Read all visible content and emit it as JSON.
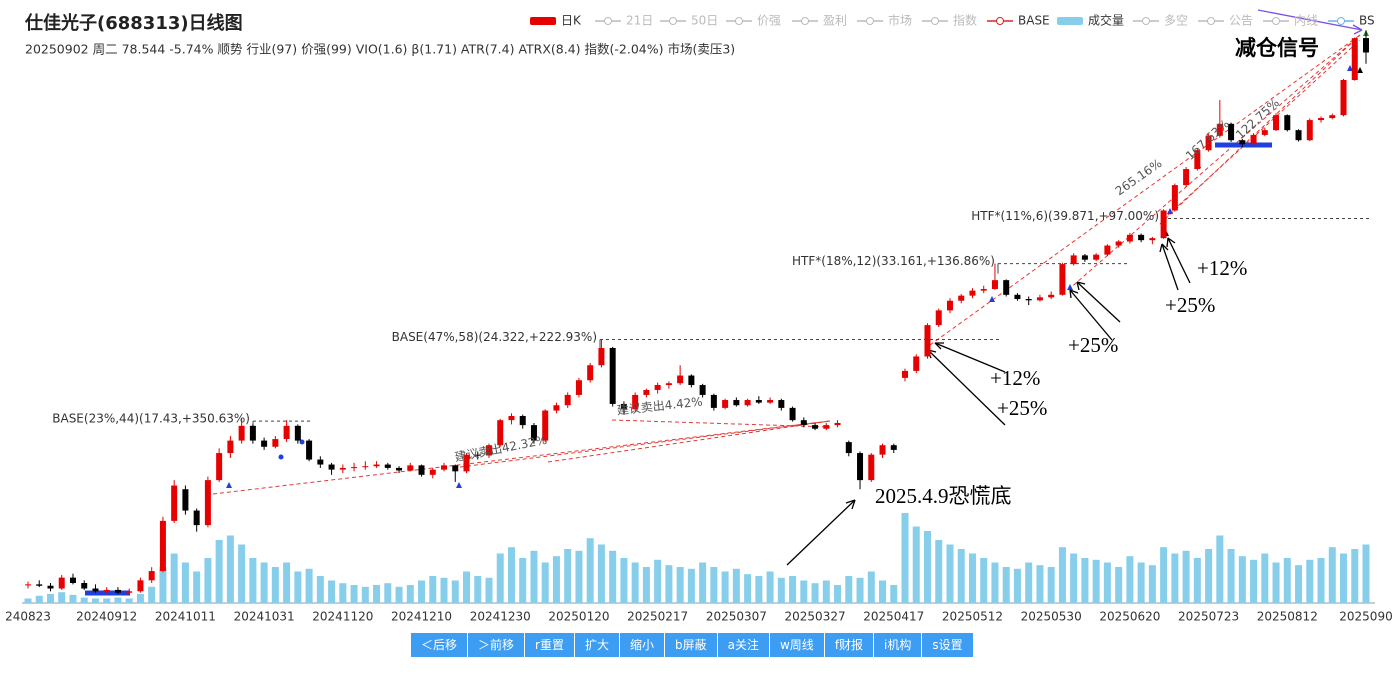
{
  "chart_data": {
    "type": "candlestick",
    "title": "仕佳光子(688313)日线图",
    "subtitle": "20250902 周二 78.544 -5.74% 顺势 行业(97) 价强(99) VIO(1.6) β(1.71) ATR(7.4) ATRX(8.4) 指数(-2.04%) 市场(卖压3)",
    "log_scale": true,
    "ylim": [
      8.57,
      86.1
    ],
    "up_color": "#e60000",
    "down_color": "#000000",
    "categories": [
      "240823",
      null,
      null,
      null,
      null,
      null,
      null,
      "20240912",
      null,
      null,
      null,
      null,
      null,
      null,
      "20241011",
      null,
      null,
      null,
      null,
      null,
      null,
      "20241031",
      null,
      null,
      null,
      null,
      null,
      null,
      "20241120",
      null,
      null,
      null,
      null,
      null,
      null,
      "20241210",
      null,
      null,
      null,
      null,
      null,
      null,
      "20241230",
      null,
      null,
      null,
      null,
      null,
      null,
      "20250120",
      null,
      null,
      null,
      null,
      null,
      null,
      "20250217",
      null,
      null,
      null,
      null,
      null,
      null,
      "20250307",
      null,
      null,
      null,
      null,
      null,
      null,
      "20250327",
      null,
      null,
      null,
      null,
      null,
      null,
      "20250417",
      null,
      null,
      null,
      null,
      null,
      null,
      "20250512",
      null,
      null,
      null,
      null,
      null,
      null,
      "20250530",
      null,
      null,
      null,
      null,
      null,
      null,
      "20250620",
      null,
      null,
      null,
      null,
      null,
      null,
      "20250723",
      null,
      null,
      null,
      null,
      null,
      null,
      "20250812",
      null,
      null,
      null,
      null,
      null,
      null,
      "2025090"
    ],
    "ohlc": [
      [
        8.92,
        9.05,
        8.8,
        8.95
      ],
      [
        8.95,
        9.1,
        8.85,
        8.9
      ],
      [
        8.9,
        9.0,
        8.7,
        8.8
      ],
      [
        8.8,
        9.3,
        8.75,
        9.2
      ],
      [
        9.2,
        9.35,
        8.95,
        9.0
      ],
      [
        9.0,
        9.1,
        8.75,
        8.8
      ],
      [
        8.8,
        8.95,
        8.65,
        8.7
      ],
      [
        8.7,
        8.85,
        8.6,
        8.75
      ],
      [
        8.75,
        8.85,
        8.6,
        8.65
      ],
      [
        8.65,
        8.8,
        8.55,
        8.7
      ],
      [
        8.7,
        9.2,
        8.65,
        9.1
      ],
      [
        9.1,
        9.6,
        9.0,
        9.45
      ],
      [
        9.45,
        11.8,
        9.4,
        11.6
      ],
      [
        11.6,
        13.7,
        11.5,
        13.4
      ],
      [
        13.2,
        13.4,
        11.9,
        12.1
      ],
      [
        12.1,
        12.2,
        11.1,
        11.4
      ],
      [
        11.4,
        13.9,
        11.3,
        13.7
      ],
      [
        13.7,
        15.6,
        13.6,
        15.3
      ],
      [
        15.3,
        16.4,
        15.0,
        16.1
      ],
      [
        16.1,
        17.6,
        15.9,
        17.1
      ],
      [
        17.1,
        17.2,
        15.9,
        16.1
      ],
      [
        16.1,
        16.3,
        15.5,
        15.7
      ],
      [
        15.7,
        16.4,
        15.6,
        16.2
      ],
      [
        16.2,
        17.5,
        16.0,
        17.1
      ],
      [
        17.1,
        17.2,
        15.9,
        16.1
      ],
      [
        16.1,
        16.2,
        14.8,
        14.9
      ],
      [
        14.9,
        15.1,
        14.4,
        14.6
      ],
      [
        14.6,
        14.7,
        14.0,
        14.3
      ],
      [
        14.3,
        14.6,
        14.1,
        14.4
      ],
      [
        14.4,
        14.7,
        14.2,
        14.45
      ],
      [
        14.45,
        14.8,
        14.3,
        14.5
      ],
      [
        14.5,
        14.8,
        14.4,
        14.6
      ],
      [
        14.6,
        14.7,
        14.3,
        14.4
      ],
      [
        14.4,
        14.5,
        14.1,
        14.25
      ],
      [
        14.25,
        14.7,
        14.2,
        14.55
      ],
      [
        14.55,
        14.6,
        13.9,
        14.0
      ],
      [
        14.0,
        14.4,
        13.8,
        14.3
      ],
      [
        14.3,
        14.7,
        14.2,
        14.55
      ],
      [
        14.55,
        14.6,
        13.6,
        14.2
      ],
      [
        14.2,
        15.3,
        14.1,
        15.2
      ],
      [
        15.2,
        15.4,
        14.9,
        15.15
      ],
      [
        15.15,
        15.9,
        15.0,
        15.8
      ],
      [
        15.8,
        17.6,
        15.7,
        17.5
      ],
      [
        17.5,
        18.0,
        17.2,
        17.8
      ],
      [
        17.8,
        17.9,
        16.9,
        17.15
      ],
      [
        17.15,
        17.3,
        15.9,
        16.1
      ],
      [
        16.1,
        18.3,
        16.0,
        18.2
      ],
      [
        18.2,
        18.8,
        18.0,
        18.6
      ],
      [
        18.6,
        19.6,
        18.4,
        19.4
      ],
      [
        19.4,
        20.8,
        19.2,
        20.6
      ],
      [
        20.6,
        22.1,
        20.4,
        21.9
      ],
      [
        21.9,
        24.32,
        21.7,
        23.5
      ],
      [
        23.5,
        23.6,
        18.5,
        18.7
      ],
      [
        18.7,
        18.9,
        17.9,
        18.3
      ],
      [
        18.3,
        19.6,
        18.1,
        19.4
      ],
      [
        19.4,
        19.9,
        19.2,
        19.8
      ],
      [
        19.8,
        20.4,
        19.5,
        20.2
      ],
      [
        20.2,
        20.5,
        19.9,
        20.35
      ],
      [
        20.35,
        21.9,
        20.2,
        21.0
      ],
      [
        21.0,
        21.1,
        20.0,
        20.2
      ],
      [
        20.2,
        20.3,
        19.2,
        19.4
      ],
      [
        19.4,
        19.5,
        18.2,
        18.4
      ],
      [
        18.4,
        19.1,
        18.3,
        19.0
      ],
      [
        19.0,
        19.2,
        18.5,
        18.6
      ],
      [
        18.6,
        19.1,
        18.5,
        19.0
      ],
      [
        19.0,
        19.3,
        18.7,
        18.8
      ],
      [
        18.8,
        19.2,
        18.7,
        19.0
      ],
      [
        19.0,
        19.1,
        18.2,
        18.4
      ],
      [
        18.4,
        18.5,
        17.4,
        17.5
      ],
      [
        17.5,
        17.7,
        17.0,
        17.15
      ],
      [
        17.15,
        17.3,
        16.8,
        16.9
      ],
      [
        16.9,
        17.3,
        16.8,
        17.15
      ],
      [
        17.15,
        17.5,
        17.0,
        17.3
      ],
      [
        16.0,
        16.1,
        15.1,
        15.3
      ],
      [
        15.3,
        15.4,
        13.2,
        13.7
      ],
      [
        13.7,
        15.3,
        13.6,
        15.2
      ],
      [
        15.2,
        15.9,
        15.0,
        15.8
      ],
      [
        15.8,
        15.9,
        15.3,
        15.5
      ],
      [
        20.8,
        21.6,
        20.5,
        21.4
      ],
      [
        21.4,
        22.9,
        21.2,
        22.7
      ],
      [
        22.7,
        26.0,
        22.5,
        25.8
      ],
      [
        25.8,
        27.6,
        25.6,
        27.4
      ],
      [
        27.4,
        28.8,
        27.1,
        28.5
      ],
      [
        28.5,
        29.3,
        28.2,
        29.1
      ],
      [
        29.1,
        30.0,
        28.8,
        29.7
      ],
      [
        29.7,
        30.3,
        29.4,
        29.9
      ],
      [
        29.9,
        33.16,
        29.8,
        31.0
      ],
      [
        31.0,
        31.1,
        29.0,
        29.2
      ],
      [
        29.2,
        29.4,
        28.5,
        28.7
      ],
      [
        28.7,
        29.0,
        28.0,
        28.55
      ],
      [
        28.55,
        29.2,
        28.4,
        28.9
      ],
      [
        28.9,
        29.6,
        28.7,
        29.2
      ],
      [
        29.2,
        33.3,
        29.1,
        33.1
      ],
      [
        33.1,
        34.6,
        32.9,
        34.3
      ],
      [
        34.3,
        34.5,
        33.4,
        33.7
      ],
      [
        33.7,
        34.6,
        33.5,
        34.4
      ],
      [
        34.4,
        35.9,
        34.2,
        35.7
      ],
      [
        35.7,
        36.5,
        35.4,
        36.3
      ],
      [
        36.3,
        37.6,
        36.0,
        37.3
      ],
      [
        37.3,
        37.5,
        36.2,
        36.5
      ],
      [
        36.5,
        37.0,
        35.9,
        36.8
      ],
      [
        36.8,
        41.4,
        36.7,
        41.2
      ],
      [
        41.2,
        46.0,
        41.0,
        45.7
      ],
      [
        45.7,
        49.2,
        45.4,
        48.8
      ],
      [
        48.8,
        53.0,
        48.5,
        52.7
      ],
      [
        52.7,
        56.3,
        52.4,
        55.9
      ],
      [
        55.9,
        64.7,
        55.5,
        58.7
      ],
      [
        58.7,
        59.0,
        54.5,
        54.9
      ],
      [
        54.9,
        55.2,
        53.4,
        54.0
      ],
      [
        54.0,
        56.5,
        53.8,
        56.1
      ],
      [
        56.1,
        57.8,
        55.8,
        57.2
      ],
      [
        57.2,
        61.3,
        57.0,
        60.8
      ],
      [
        60.8,
        61.0,
        56.9,
        57.2
      ],
      [
        57.2,
        57.4,
        54.6,
        54.9
      ],
      [
        54.9,
        60.0,
        54.7,
        59.6
      ],
      [
        59.6,
        60.5,
        59.0,
        60.1
      ],
      [
        60.1,
        61.2,
        59.8,
        60.8
      ],
      [
        60.8,
        70.5,
        60.5,
        70.2
      ],
      [
        70.2,
        83.5,
        70.0,
        83.3
      ],
      [
        83.3,
        86.0,
        75.0,
        78.544
      ]
    ],
    "volume": {
      "name": "成交量",
      "color": "#87ceeb",
      "vlim": [
        0,
        100
      ],
      "values": [
        5,
        8,
        10,
        12,
        9,
        6,
        5,
        5,
        6,
        5,
        10,
        18,
        40,
        55,
        45,
        35,
        50,
        70,
        75,
        65,
        50,
        45,
        40,
        45,
        35,
        38,
        30,
        25,
        22,
        20,
        18,
        20,
        22,
        18,
        20,
        25,
        30,
        28,
        25,
        35,
        30,
        28,
        55,
        62,
        50,
        58,
        45,
        52,
        60,
        58,
        72,
        65,
        58,
        50,
        45,
        40,
        48,
        42,
        40,
        38,
        45,
        40,
        35,
        38,
        32,
        30,
        35,
        28,
        30,
        25,
        22,
        25,
        20,
        30,
        28,
        35,
        25,
        20,
        100,
        85,
        80,
        70,
        65,
        60,
        55,
        50,
        45,
        40,
        38,
        45,
        42,
        40,
        62,
        55,
        50,
        48,
        45,
        40,
        52,
        45,
        42,
        62,
        55,
        58,
        50,
        60,
        75,
        60,
        52,
        48,
        55,
        45,
        50,
        42,
        48,
        50,
        62,
        55,
        60,
        65
      ]
    },
    "legend": [
      {
        "name": "日K",
        "color": "#e60000",
        "style": "bar"
      },
      {
        "name": "21日",
        "color": "#bbbbbb",
        "style": "off"
      },
      {
        "name": "50日",
        "color": "#bbbbbb",
        "style": "off"
      },
      {
        "name": "价强",
        "color": "#bbbbbb",
        "style": "off"
      },
      {
        "name": "盈利",
        "color": "#bbbbbb",
        "style": "off"
      },
      {
        "name": "市场",
        "color": "#bbbbbb",
        "style": "off"
      },
      {
        "name": "指数",
        "color": "#bbbbbb",
        "style": "off"
      },
      {
        "name": "BASE",
        "color": "#d62728",
        "style": "line"
      },
      {
        "name": "成交量",
        "color": "#87ceeb",
        "style": "bar"
      },
      {
        "name": "多空",
        "color": "#bbbbbb",
        "style": "off"
      },
      {
        "name": "公告",
        "color": "#bbbbbb",
        "style": "off"
      },
      {
        "name": "内线",
        "color": "#bbbbbb",
        "style": "off"
      },
      {
        "name": "BS",
        "color": "#6cb4e4",
        "style": "line"
      }
    ],
    "levels": [
      {
        "text": "BASE(23%,44)(17.43,+350.63%)",
        "value": 17.43
      },
      {
        "text": "BASE(47%,58)(24.322,+222.93%)",
        "value": 24.322
      },
      {
        "text": "HTF*(18%,12)(33.161,+136.86%)",
        "value": 33.161
      },
      {
        "text": "HTF*(11%,6)(39.871,+97.00%)",
        "value": 39.871
      }
    ],
    "annotations": [
      "建议卖出42.32%",
      "建议卖出4.42%",
      "265.16%",
      "167.63%",
      "122.75%",
      "减仓信号",
      "+12%",
      "+25%",
      "+25%",
      "+12%",
      "+25%",
      "2025.4.9恐慌底"
    ]
  },
  "buttons": [
    "＜后移",
    "＞前移",
    "r重置",
    "扩大",
    "缩小",
    "b屏蔽",
    "a关注",
    "w周线",
    "f财报",
    "i机构",
    "s设置"
  ]
}
